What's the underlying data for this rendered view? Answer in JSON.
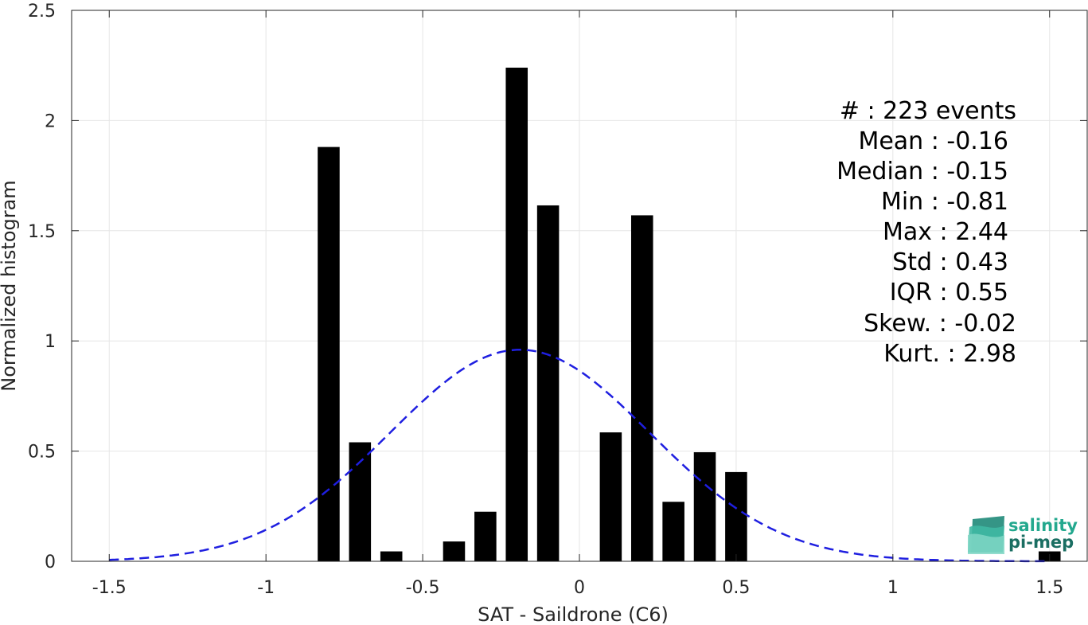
{
  "chart_data": {
    "type": "bar",
    "xlabel": "SAT - Saildrone (C6)",
    "ylabel": "Normalized histogram",
    "xlim": [
      -1.62,
      1.62
    ],
    "ylim": [
      0,
      2.5
    ],
    "xticks": [
      -1.5,
      -1,
      -0.5,
      0,
      0.5,
      1,
      1.5
    ],
    "xtick_labels": [
      "-1.5",
      "-1",
      "-0.5",
      "0",
      "0.5",
      "1",
      "1.5"
    ],
    "yticks": [
      0,
      0.5,
      1,
      1.5,
      2,
      2.5
    ],
    "ytick_labels": [
      "0",
      "0.5",
      "1",
      "1.5",
      "2",
      "2.5"
    ],
    "grid": true,
    "bar_width": 0.07,
    "bins": [
      {
        "x": -0.8,
        "value": 1.88
      },
      {
        "x": -0.7,
        "value": 0.54
      },
      {
        "x": -0.6,
        "value": 0.045
      },
      {
        "x": -0.4,
        "value": 0.09
      },
      {
        "x": -0.3,
        "value": 0.225
      },
      {
        "x": -0.2,
        "value": 2.24
      },
      {
        "x": -0.1,
        "value": 1.615
      },
      {
        "x": 0.1,
        "value": 0.585
      },
      {
        "x": 0.2,
        "value": 1.57
      },
      {
        "x": 0.3,
        "value": 0.27
      },
      {
        "x": 0.4,
        "value": 0.495
      },
      {
        "x": 0.5,
        "value": 0.405
      },
      {
        "x": 1.5,
        "value": 0.045
      }
    ],
    "fit_curve": {
      "style": "dashed",
      "color": "#1f1fe0",
      "mean": -0.19,
      "std": 0.415,
      "peak": 0.96,
      "x_range": [
        -1.5,
        1.5
      ]
    },
    "bar_color": "#000000",
    "stats": [
      {
        "text": "#  : 223 events"
      },
      {
        "text": "Mean : -0.16"
      },
      {
        "text": "Median : -0.15"
      },
      {
        "text": "Min : -0.81"
      },
      {
        "text": "Max : 2.44"
      },
      {
        "text": "Std : 0.43"
      },
      {
        "text": "IQR : 0.55"
      },
      {
        "text": "Skew. : -0.02"
      },
      {
        "text": "Kurt. : 2.98"
      }
    ]
  },
  "logo": {
    "line1": "salinity",
    "line2": "pi-mep",
    "color1": "#23a88e",
    "color2": "#1a6e62"
  }
}
